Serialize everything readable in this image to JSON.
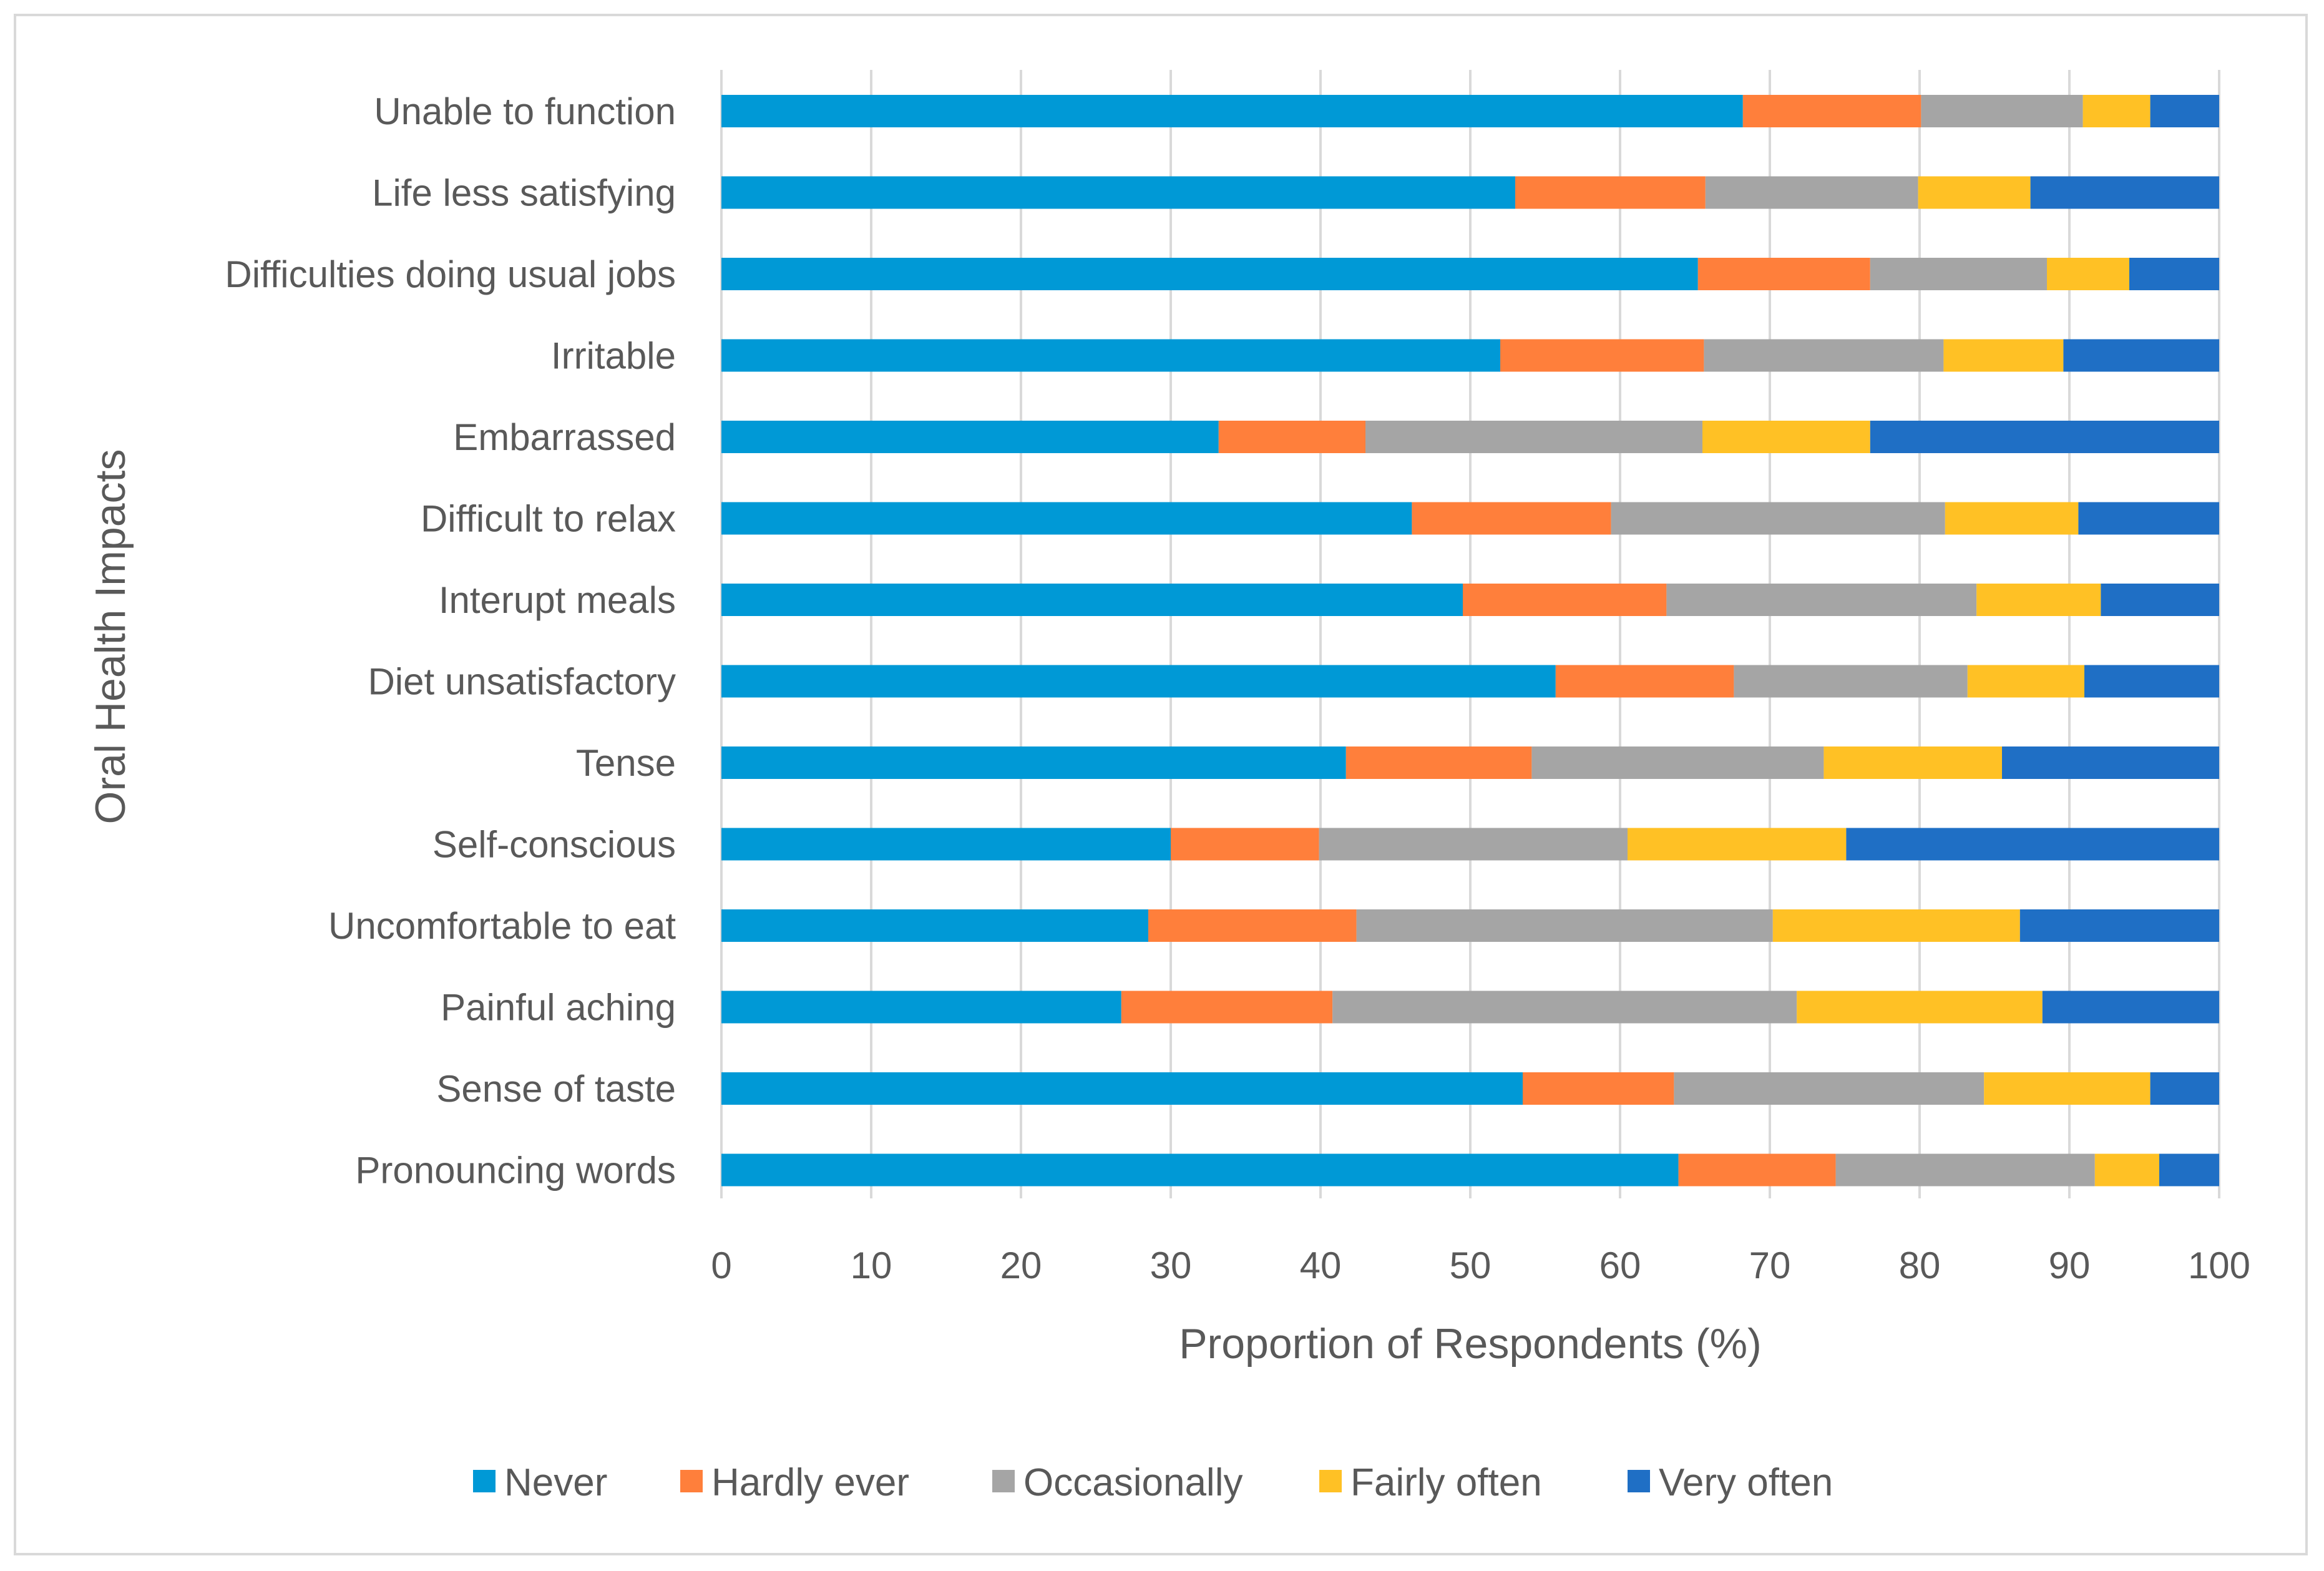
{
  "chart_data": {
    "type": "bar",
    "orientation": "horizontal",
    "stacked": true,
    "title": "",
    "xlabel": "Proportion of Respondents (%)",
    "ylabel": "Oral Health Impacts",
    "xlim": [
      0,
      100
    ],
    "xticks": [
      0,
      10,
      20,
      30,
      40,
      50,
      60,
      70,
      80,
      90,
      100
    ],
    "grid": "vertical",
    "legend_position": "bottom",
    "categories": [
      "Unable to function",
      "Life less satisfying",
      "Difficulties doing usual jobs",
      "Irritable",
      "Embarrassed",
      "Difficult to relax",
      "Interupt meals",
      "Diet unsatisfactory",
      "Tense",
      "Self-conscious",
      "Uncomfortable to eat",
      "Painful aching",
      "Sense of taste",
      "Pronouncing words"
    ],
    "series": [
      {
        "name": "Never",
        "color": "#0099d6",
        "values": [
          68.2,
          53.0,
          65.2,
          52.0,
          33.2,
          46.1,
          49.5,
          55.7,
          41.7,
          30.0,
          28.5,
          26.7,
          53.5,
          63.9
        ]
      },
      {
        "name": "Hardly ever",
        "color": "#ff7f3b",
        "values": [
          11.9,
          12.7,
          11.5,
          13.6,
          9.8,
          13.3,
          13.6,
          11.9,
          12.4,
          9.9,
          13.9,
          14.1,
          10.1,
          10.5
        ]
      },
      {
        "name": "Occasionally",
        "color": "#a5a5a5",
        "values": [
          10.8,
          14.2,
          11.8,
          16.0,
          22.5,
          22.3,
          20.7,
          15.6,
          19.5,
          20.6,
          27.8,
          31.0,
          20.7,
          17.3
        ]
      },
      {
        "name": "Fairly often",
        "color": "#ffc125",
        "values": [
          4.5,
          7.5,
          5.5,
          8.0,
          11.2,
          8.9,
          8.3,
          7.8,
          11.9,
          14.6,
          16.5,
          16.4,
          11.1,
          4.3
        ]
      },
      {
        "name": "Very often",
        "color": "#1f6fc5",
        "values": [
          4.6,
          12.6,
          6.0,
          10.4,
          23.3,
          9.4,
          7.9,
          9.0,
          14.5,
          24.9,
          13.3,
          11.8,
          4.6,
          4.0
        ]
      }
    ]
  }
}
